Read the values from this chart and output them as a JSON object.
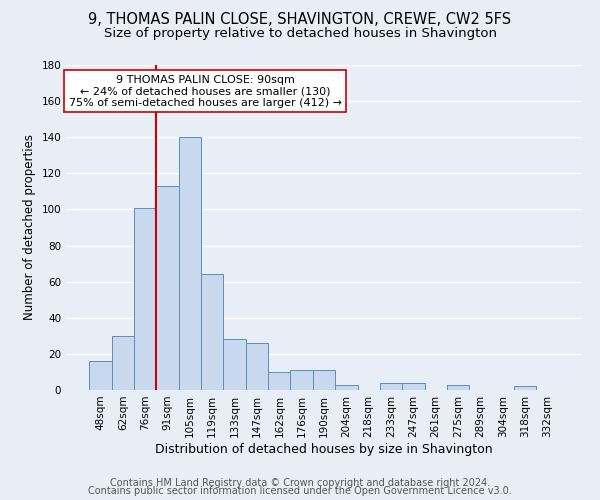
{
  "title": "9, THOMAS PALIN CLOSE, SHAVINGTON, CREWE, CW2 5FS",
  "subtitle": "Size of property relative to detached houses in Shavington",
  "xlabel": "Distribution of detached houses by size in Shavington",
  "ylabel": "Number of detached properties",
  "bar_labels": [
    "48sqm",
    "62sqm",
    "76sqm",
    "91sqm",
    "105sqm",
    "119sqm",
    "133sqm",
    "147sqm",
    "162sqm",
    "176sqm",
    "190sqm",
    "204sqm",
    "218sqm",
    "233sqm",
    "247sqm",
    "261sqm",
    "275sqm",
    "289sqm",
    "304sqm",
    "318sqm",
    "332sqm"
  ],
  "bar_values": [
    16,
    30,
    101,
    113,
    140,
    64,
    28,
    26,
    10,
    11,
    11,
    3,
    0,
    4,
    4,
    0,
    3,
    0,
    0,
    2,
    0
  ],
  "bar_color": "#c9d9ed",
  "bar_edge_color": "#5b8dbe",
  "background_color": "#e8eef6",
  "plot_bg_color": "#e8eef6",
  "grid_color": "#ffffff",
  "vline_color": "#cc0000",
  "vline_bar_index": 3,
  "annotation_line1": "9 THOMAS PALIN CLOSE: 90sqm",
  "annotation_line2": "← 24% of detached houses are smaller (130)",
  "annotation_line3": "75% of semi-detached houses are larger (412) →",
  "annotation_box_color": "#ffffff",
  "annotation_box_edge_color": "#cc0000",
  "ylim": [
    0,
    180
  ],
  "yticks": [
    0,
    20,
    40,
    60,
    80,
    100,
    120,
    140,
    160,
    180
  ],
  "footer1": "Contains HM Land Registry data © Crown copyright and database right 2024.",
  "footer2": "Contains public sector information licensed under the Open Government Licence v3.0.",
  "title_fontsize": 10.5,
  "subtitle_fontsize": 9.5,
  "xlabel_fontsize": 9,
  "ylabel_fontsize": 8.5,
  "tick_fontsize": 7.5,
  "annot_fontsize": 8,
  "footer_fontsize": 7
}
